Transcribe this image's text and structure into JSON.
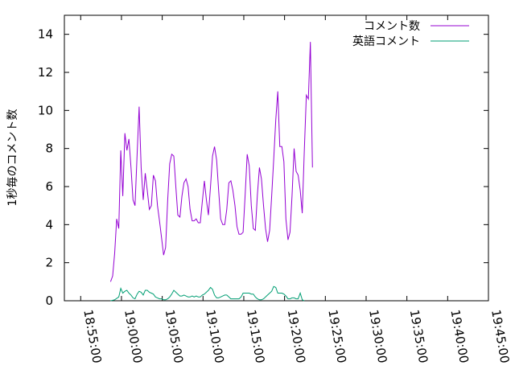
{
  "chart_data": {
    "type": "line",
    "ylabel": "1秒毎のコメント数",
    "xlabel": "",
    "ylim": [
      0,
      15
    ],
    "y_ticks": [
      0,
      2,
      4,
      6,
      8,
      10,
      12,
      14
    ],
    "xlim": [
      "18:53:00",
      "19:45:00"
    ],
    "x_ticks": [
      "18:55:00",
      "19:00:00",
      "19:05:00",
      "19:10:00",
      "19:15:00",
      "19:20:00",
      "19:25:00",
      "19:30:00",
      "19:35:00",
      "19:40:00",
      "19:45:00"
    ],
    "grid": false,
    "legend_position": "top-right",
    "series": [
      {
        "name": "コメント数",
        "color": "#9400d3",
        "points": [
          [
            "18:58:40",
            1.0
          ],
          [
            "18:58:55",
            1.3
          ],
          [
            "18:59:10",
            2.5
          ],
          [
            "18:59:25",
            4.3
          ],
          [
            "18:59:40",
            3.8
          ],
          [
            "18:59:55",
            7.9
          ],
          [
            "19:00:10",
            5.5
          ],
          [
            "19:00:25",
            8.8
          ],
          [
            "19:00:40",
            7.9
          ],
          [
            "19:00:55",
            8.5
          ],
          [
            "19:01:10",
            7.0
          ],
          [
            "19:01:25",
            5.3
          ],
          [
            "19:01:40",
            5.0
          ],
          [
            "19:01:55",
            7.7
          ],
          [
            "19:02:10",
            10.2
          ],
          [
            "19:02:25",
            7.0
          ],
          [
            "19:02:40",
            5.3
          ],
          [
            "19:02:55",
            6.7
          ],
          [
            "19:03:10",
            5.8
          ],
          [
            "19:03:25",
            4.8
          ],
          [
            "19:03:40",
            5.0
          ],
          [
            "19:03:55",
            6.6
          ],
          [
            "19:04:10",
            6.3
          ],
          [
            "19:04:25",
            5.0
          ],
          [
            "19:04:40",
            4.2
          ],
          [
            "19:04:55",
            3.3
          ],
          [
            "19:05:10",
            2.4
          ],
          [
            "19:05:25",
            2.8
          ],
          [
            "19:05:40",
            5.3
          ],
          [
            "19:05:55",
            7.2
          ],
          [
            "19:06:10",
            7.7
          ],
          [
            "19:06:25",
            7.6
          ],
          [
            "19:06:40",
            6.0
          ],
          [
            "19:06:55",
            4.5
          ],
          [
            "19:07:10",
            4.4
          ],
          [
            "19:07:25",
            5.5
          ],
          [
            "19:07:40",
            6.2
          ],
          [
            "19:07:55",
            6.4
          ],
          [
            "19:08:10",
            6.0
          ],
          [
            "19:08:25",
            4.8
          ],
          [
            "19:08:40",
            4.2
          ],
          [
            "19:08:55",
            4.2
          ],
          [
            "19:09:10",
            4.3
          ],
          [
            "19:09:25",
            4.1
          ],
          [
            "19:09:40",
            4.1
          ],
          [
            "19:09:55",
            5.2
          ],
          [
            "19:10:10",
            6.3
          ],
          [
            "19:10:25",
            5.3
          ],
          [
            "19:10:40",
            4.5
          ],
          [
            "19:10:55",
            6.0
          ],
          [
            "19:11:10",
            7.6
          ],
          [
            "19:11:25",
            8.1
          ],
          [
            "19:11:40",
            7.4
          ],
          [
            "19:11:55",
            5.8
          ],
          [
            "19:12:10",
            4.3
          ],
          [
            "19:12:25",
            4.0
          ],
          [
            "19:12:40",
            4.0
          ],
          [
            "19:12:55",
            4.8
          ],
          [
            "19:13:10",
            6.2
          ],
          [
            "19:13:25",
            6.3
          ],
          [
            "19:13:40",
            5.8
          ],
          [
            "19:13:55",
            5.0
          ],
          [
            "19:14:10",
            3.9
          ],
          [
            "19:14:25",
            3.5
          ],
          [
            "19:14:40",
            3.5
          ],
          [
            "19:14:55",
            3.6
          ],
          [
            "19:15:10",
            5.6
          ],
          [
            "19:15:25",
            7.7
          ],
          [
            "19:15:40",
            7.1
          ],
          [
            "19:15:55",
            5.0
          ],
          [
            "19:16:10",
            3.8
          ],
          [
            "19:16:25",
            3.7
          ],
          [
            "19:16:40",
            5.6
          ],
          [
            "19:16:55",
            7.0
          ],
          [
            "19:17:10",
            6.4
          ],
          [
            "19:17:25",
            5.0
          ],
          [
            "19:17:40",
            3.8
          ],
          [
            "19:17:55",
            3.1
          ],
          [
            "19:18:10",
            3.7
          ],
          [
            "19:18:25",
            5.5
          ],
          [
            "19:18:40",
            7.4
          ],
          [
            "19:18:55",
            9.5
          ],
          [
            "19:19:10",
            11.0
          ],
          [
            "19:19:25",
            8.1
          ],
          [
            "19:19:40",
            8.1
          ],
          [
            "19:19:55",
            7.3
          ],
          [
            "19:20:10",
            4.3
          ],
          [
            "19:20:25",
            3.2
          ],
          [
            "19:20:40",
            3.6
          ],
          [
            "19:20:55",
            5.5
          ],
          [
            "19:21:10",
            8.0
          ],
          [
            "19:21:25",
            6.8
          ],
          [
            "19:21:40",
            6.6
          ],
          [
            "19:21:55",
            5.8
          ],
          [
            "19:22:10",
            4.6
          ],
          [
            "19:22:25",
            7.8
          ],
          [
            "19:22:40",
            10.8
          ],
          [
            "19:22:55",
            10.6
          ],
          [
            "19:23:10",
            13.6
          ],
          [
            "19:23:25",
            7.0
          ]
        ]
      },
      {
        "name": "英語コメント",
        "color": "#009e73",
        "points": [
          [
            "18:58:40",
            0.0
          ],
          [
            "18:59:10",
            0.05
          ],
          [
            "18:59:40",
            0.2
          ],
          [
            "18:59:55",
            0.65
          ],
          [
            "19:00:10",
            0.4
          ],
          [
            "19:00:25",
            0.5
          ],
          [
            "19:00:40",
            0.55
          ],
          [
            "19:00:55",
            0.4
          ],
          [
            "19:01:10",
            0.3
          ],
          [
            "19:01:25",
            0.15
          ],
          [
            "19:01:40",
            0.1
          ],
          [
            "19:01:55",
            0.35
          ],
          [
            "19:02:10",
            0.5
          ],
          [
            "19:02:25",
            0.45
          ],
          [
            "19:02:40",
            0.3
          ],
          [
            "19:02:55",
            0.55
          ],
          [
            "19:03:10",
            0.55
          ],
          [
            "19:03:25",
            0.45
          ],
          [
            "19:03:40",
            0.4
          ],
          [
            "19:03:55",
            0.35
          ],
          [
            "19:04:10",
            0.2
          ],
          [
            "19:04:25",
            0.15
          ],
          [
            "19:04:40",
            0.1
          ],
          [
            "19:04:55",
            0.1
          ],
          [
            "19:05:10",
            0.05
          ],
          [
            "19:05:25",
            0.05
          ],
          [
            "19:05:40",
            0.1
          ],
          [
            "19:05:55",
            0.2
          ],
          [
            "19:06:10",
            0.35
          ],
          [
            "19:06:25",
            0.55
          ],
          [
            "19:06:40",
            0.45
          ],
          [
            "19:06:55",
            0.35
          ],
          [
            "19:07:10",
            0.25
          ],
          [
            "19:07:25",
            0.25
          ],
          [
            "19:07:40",
            0.3
          ],
          [
            "19:07:55",
            0.25
          ],
          [
            "19:08:10",
            0.2
          ],
          [
            "19:08:25",
            0.2
          ],
          [
            "19:08:40",
            0.25
          ],
          [
            "19:08:55",
            0.2
          ],
          [
            "19:09:10",
            0.25
          ],
          [
            "19:09:25",
            0.2
          ],
          [
            "19:09:40",
            0.2
          ],
          [
            "19:09:55",
            0.3
          ],
          [
            "19:10:10",
            0.35
          ],
          [
            "19:10:25",
            0.45
          ],
          [
            "19:10:40",
            0.55
          ],
          [
            "19:10:55",
            0.7
          ],
          [
            "19:11:10",
            0.6
          ],
          [
            "19:11:25",
            0.3
          ],
          [
            "19:11:40",
            0.15
          ],
          [
            "19:11:55",
            0.15
          ],
          [
            "19:12:10",
            0.2
          ],
          [
            "19:12:25",
            0.25
          ],
          [
            "19:12:40",
            0.3
          ],
          [
            "19:12:55",
            0.3
          ],
          [
            "19:13:10",
            0.2
          ],
          [
            "19:13:25",
            0.1
          ],
          [
            "19:13:40",
            0.1
          ],
          [
            "19:13:55",
            0.1
          ],
          [
            "19:14:10",
            0.1
          ],
          [
            "19:14:25",
            0.1
          ],
          [
            "19:14:40",
            0.2
          ],
          [
            "19:14:55",
            0.4
          ],
          [
            "19:15:10",
            0.4
          ],
          [
            "19:15:25",
            0.4
          ],
          [
            "19:15:40",
            0.4
          ],
          [
            "19:15:55",
            0.35
          ],
          [
            "19:16:10",
            0.35
          ],
          [
            "19:16:25",
            0.2
          ],
          [
            "19:16:40",
            0.1
          ],
          [
            "19:16:55",
            0.05
          ],
          [
            "19:17:10",
            0.05
          ],
          [
            "19:17:25",
            0.1
          ],
          [
            "19:17:40",
            0.2
          ],
          [
            "19:17:55",
            0.3
          ],
          [
            "19:18:10",
            0.4
          ],
          [
            "19:18:25",
            0.5
          ],
          [
            "19:18:40",
            0.75
          ],
          [
            "19:18:55",
            0.7
          ],
          [
            "19:19:10",
            0.4
          ],
          [
            "19:19:25",
            0.4
          ],
          [
            "19:19:40",
            0.4
          ],
          [
            "19:19:55",
            0.35
          ],
          [
            "19:20:10",
            0.25
          ],
          [
            "19:20:25",
            0.1
          ],
          [
            "19:20:40",
            0.1
          ],
          [
            "19:20:55",
            0.15
          ],
          [
            "19:21:10",
            0.15
          ],
          [
            "19:21:25",
            0.1
          ],
          [
            "19:21:40",
            0.1
          ],
          [
            "19:21:55",
            0.4
          ],
          [
            "19:22:10",
            0.05
          ],
          [
            "19:22:25",
            0.0
          ]
        ]
      }
    ]
  }
}
